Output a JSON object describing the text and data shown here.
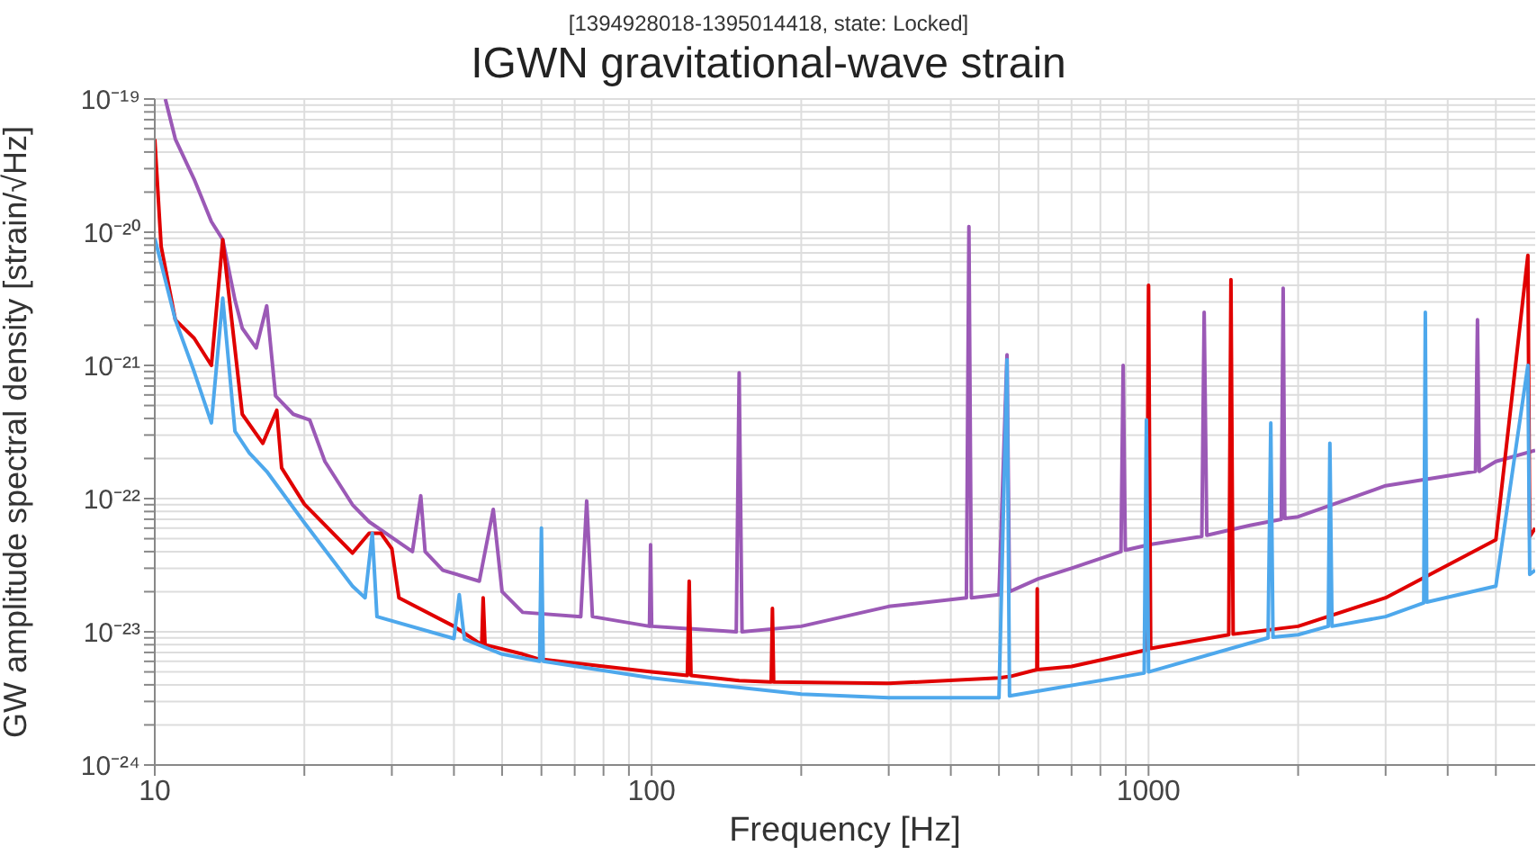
{
  "chart_data": {
    "type": "line",
    "title": "IGWN gravitational-wave strain",
    "subtitle": "[1394928018-1395014418, state: Locked]",
    "xlabel": "Frequency [Hz]",
    "ylabel": "GW amplitude spectral density [strain/√Hz]",
    "log": "xy",
    "grid": true,
    "marker": "none",
    "line_style": "solid",
    "xlim": [
      10,
      6000
    ],
    "ylim": [
      1e-24,
      1e-19
    ],
    "xticks": [
      10,
      {
        "value": 20,
        "label": null
      },
      {
        "value": 30,
        "label": null
      },
      {
        "value": 40,
        "label": null
      },
      {
        "value": 50,
        "label": null
      },
      {
        "value": 60,
        "label": null
      },
      {
        "value": 70,
        "label": null
      },
      {
        "value": 80,
        "label": null
      },
      {
        "value": 90,
        "label": null
      },
      100,
      {
        "value": 200,
        "label": null
      },
      {
        "value": 300,
        "label": null
      },
      {
        "value": 400,
        "label": null
      },
      {
        "value": 500,
        "label": null
      },
      {
        "value": 600,
        "label": null
      },
      {
        "value": 700,
        "label": null
      },
      {
        "value": 800,
        "label": null
      },
      {
        "value": 900,
        "label": null
      },
      1000,
      {
        "value": 2000,
        "label": null
      },
      {
        "value": 3000,
        "label": null
      },
      {
        "value": 4000,
        "label": null
      },
      {
        "value": 5000,
        "label": null
      }
    ],
    "yticks": [
      {
        "value": 1e-24,
        "label": "10⁻²⁴"
      },
      {
        "value": 2e-24,
        "label": null
      },
      {
        "value": 3e-24,
        "label": null
      },
      {
        "value": 4e-24,
        "label": null
      },
      {
        "value": 5e-24,
        "label": null
      },
      {
        "value": 6e-24,
        "label": null
      },
      {
        "value": 7e-24,
        "label": null
      },
      {
        "value": 8e-24,
        "label": null
      },
      {
        "value": 9e-24,
        "label": null
      },
      {
        "value": 1e-23,
        "label": "10⁻²³"
      },
      {
        "value": 2e-23,
        "label": null
      },
      {
        "value": 3e-23,
        "label": null
      },
      {
        "value": 4e-23,
        "label": null
      },
      {
        "value": 5e-23,
        "label": null
      },
      {
        "value": 6e-23,
        "label": null
      },
      {
        "value": 7e-23,
        "label": null
      },
      {
        "value": 8e-23,
        "label": null
      },
      {
        "value": 9e-23,
        "label": null
      },
      {
        "value": 1e-22,
        "label": "10⁻²²"
      },
      {
        "value": 2e-22,
        "label": null
      },
      {
        "value": 3e-22,
        "label": null
      },
      {
        "value": 4e-22,
        "label": null
      },
      {
        "value": 5e-22,
        "label": null
      },
      {
        "value": 6e-22,
        "label": null
      },
      {
        "value": 7e-22,
        "label": null
      },
      {
        "value": 8e-22,
        "label": null
      },
      {
        "value": 9e-22,
        "label": null
      },
      {
        "value": 1e-21,
        "label": "10⁻²¹"
      },
      {
        "value": 2e-21,
        "label": null
      },
      {
        "value": 3e-21,
        "label": null
      },
      {
        "value": 4e-21,
        "label": null
      },
      {
        "value": 5e-21,
        "label": null
      },
      {
        "value": 6e-21,
        "label": null
      },
      {
        "value": 7e-21,
        "label": null
      },
      {
        "value": 8e-21,
        "label": null
      },
      {
        "value": 9e-21,
        "label": null
      },
      {
        "value": 1e-20,
        "label": "10⁻²⁰"
      },
      {
        "value": 2e-20,
        "label": null
      },
      {
        "value": 3e-20,
        "label": null
      },
      {
        "value": 4e-20,
        "label": null
      },
      {
        "value": 5e-20,
        "label": null
      },
      {
        "value": 6e-20,
        "label": null
      },
      {
        "value": 7e-20,
        "label": null
      },
      {
        "value": 8e-20,
        "label": null
      },
      {
        "value": 9e-20,
        "label": null
      },
      {
        "value": 1e-19,
        "label": "10⁻¹⁹"
      }
    ],
    "series": [
      {
        "color": "#9b59b6",
        "x": [
          10.5,
          11,
          12,
          13,
          13.7,
          14.5,
          15,
          16,
          16.8,
          17.5,
          19,
          20.5,
          22,
          25,
          27,
          33,
          34.3,
          35,
          38,
          45,
          48,
          50,
          55,
          72,
          74,
          76,
          99,
          99.5,
          100,
          148,
          150,
          152,
          200,
          300,
          430,
          435,
          440,
          500,
          519,
          525,
          600,
          700,
          880,
          889,
          898,
          1000,
          1280,
          1294,
          1310,
          1600,
          1850,
          1866,
          1880,
          2000,
          3000,
          4550,
          4592,
          4630,
          5000,
          6000
        ],
        "values": [
          1e-19,
          5e-20,
          2.5e-20,
          1.2e-20,
          8.8e-21,
          3.1e-21,
          1.9e-21,
          1.35e-21,
          2.8e-21,
          5.9e-22,
          4.3e-22,
          3.9e-22,
          1.9e-22,
          9e-23,
          6.7e-23,
          4e-23,
          1.05e-22,
          4e-23,
          2.9e-23,
          2.4e-23,
          8.3e-23,
          2e-23,
          1.4e-23,
          1.3e-23,
          9.6e-23,
          1.3e-23,
          1.1e-23,
          4.5e-23,
          1.1e-23,
          1e-23,
          8.8e-22,
          1e-23,
          1.1e-23,
          1.55e-23,
          1.8e-23,
          1.1e-20,
          1.8e-23,
          1.9e-23,
          1.2e-21,
          2e-23,
          2.5e-23,
          3e-23,
          4e-23,
          1e-21,
          4.1e-23,
          4.5e-23,
          5.2e-23,
          2.5e-21,
          5.3e-23,
          6.3e-23,
          7e-23,
          3.8e-21,
          7.1e-23,
          7.3e-23,
          1.25e-22,
          1.6e-22,
          2.2e-21,
          1.6e-22,
          1.9e-22,
          2.3e-22
        ]
      },
      {
        "color": "#e00000",
        "x": [
          10,
          10.3,
          11,
          12,
          13,
          13.7,
          15,
          16.5,
          17.6,
          18,
          20,
          25,
          27,
          28.5,
          30,
          31,
          40,
          45.5,
          45.8,
          46.2,
          55,
          59.5,
          60,
          60.5,
          100,
          118,
          119,
          120,
          150,
          174,
          175,
          176,
          300,
          500,
          519,
          525,
          596,
          597,
          598,
          700,
          990,
          1000,
          1010,
          1450,
          1465,
          1480,
          2000,
          3000,
          5000,
          5800,
          5850,
          6000
        ],
        "values": [
          5e-20,
          7.8e-21,
          2.2e-21,
          1.6e-21,
          1e-21,
          8.8e-21,
          4.3e-22,
          2.6e-22,
          4.6e-22,
          1.7e-22,
          9.1e-23,
          3.9e-23,
          5.5e-23,
          5.5e-23,
          4.2e-23,
          1.8e-23,
          1.1e-23,
          8e-24,
          1.8e-23,
          8e-24,
          6.8e-24,
          6.2e-24,
          6.2e-24,
          6.2e-24,
          5e-24,
          4.7e-24,
          2.4e-23,
          4.7e-24,
          4.3e-24,
          4.2e-24,
          1.5e-23,
          4.2e-24,
          4.1e-24,
          4.5e-24,
          4.6e-24,
          4.6e-24,
          5.2e-24,
          2.1e-23,
          5.2e-24,
          5.5e-24,
          7.3e-24,
          4e-21,
          7.5e-24,
          9.5e-24,
          4.4e-21,
          9.6e-24,
          1.1e-23,
          1.8e-23,
          4.9e-23,
          6.7e-21,
          5.2e-23,
          6e-23
        ]
      },
      {
        "color": "#4ea8ec",
        "x": [
          10,
          11,
          12,
          13,
          13.7,
          14.5,
          15.5,
          16.8,
          20,
          25,
          26.5,
          27.4,
          28,
          40,
          41,
          42,
          50,
          59.5,
          60,
          60.5,
          100,
          200,
          300,
          500,
          519,
          525,
          980,
          990,
          1000,
          1740,
          1762,
          1780,
          2000,
          2300,
          2317,
          2340,
          3000,
          3580,
          3606,
          3630,
          5000,
          5800,
          5850,
          6000
        ],
        "values": [
          9e-21,
          2.2e-21,
          9e-22,
          3.7e-22,
          3.2e-21,
          3.2e-22,
          2.2e-22,
          1.6e-22,
          6.6e-23,
          2.2e-23,
          1.8e-23,
          5.5e-23,
          1.3e-23,
          8.9e-24,
          1.9e-23,
          8.8e-24,
          6.8e-24,
          6e-24,
          6e-23,
          6e-24,
          4.5e-24,
          3.4e-24,
          3.2e-24,
          3.2e-24,
          1.1e-21,
          3.3e-24,
          4.9e-24,
          3.9e-22,
          5e-24,
          9e-24,
          3.7e-22,
          9.1e-24,
          9.5e-24,
          1.1e-23,
          2.6e-22,
          1.1e-23,
          1.3e-23,
          1.65e-23,
          2.5e-21,
          1.67e-23,
          2.2e-23,
          1e-21,
          2.7e-23,
          2.9e-23
        ]
      }
    ]
  }
}
